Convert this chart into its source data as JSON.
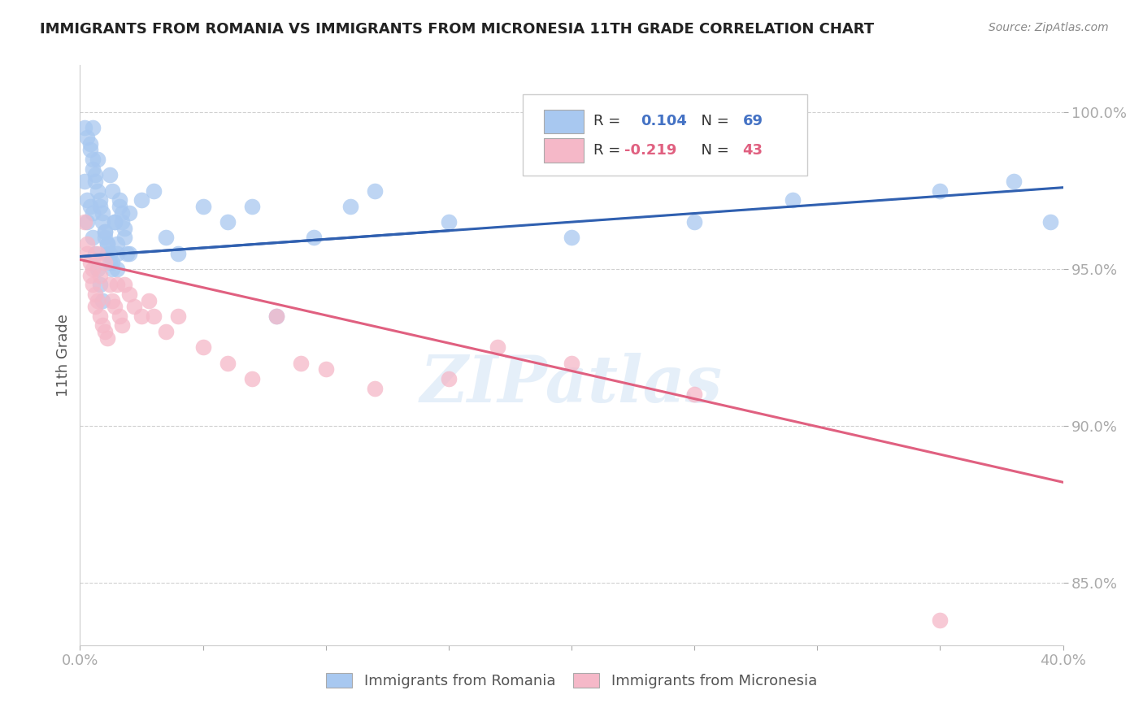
{
  "title": "IMMIGRANTS FROM ROMANIA VS IMMIGRANTS FROM MICRONESIA 11TH GRADE CORRELATION CHART",
  "source": "Source: ZipAtlas.com",
  "ylabel": "11th Grade",
  "xlim": [
    0.0,
    0.4
  ],
  "ylim": [
    83.0,
    101.5
  ],
  "romania_color": "#a8c8f0",
  "micronesia_color": "#f5b8c8",
  "romania_line_color": "#3060b0",
  "micronesia_line_color": "#e06080",
  "dashed_line_color": "#80aae0",
  "r_romania": 0.104,
  "n_romania": 69,
  "r_micronesia": -0.219,
  "n_micronesia": 43,
  "watermark": "ZIPatlas",
  "background_color": "#ffffff",
  "grid_color": "#d0d0d0",
  "title_color": "#222222",
  "axis_label_color": "#4472c4",
  "romania_scatter_x": [
    0.002,
    0.003,
    0.004,
    0.004,
    0.005,
    0.005,
    0.005,
    0.006,
    0.006,
    0.007,
    0.007,
    0.008,
    0.008,
    0.009,
    0.009,
    0.01,
    0.01,
    0.011,
    0.011,
    0.012,
    0.012,
    0.013,
    0.013,
    0.014,
    0.015,
    0.015,
    0.016,
    0.017,
    0.018,
    0.02,
    0.002,
    0.003,
    0.003,
    0.004,
    0.005,
    0.005,
    0.006,
    0.007,
    0.008,
    0.009,
    0.01,
    0.011,
    0.012,
    0.013,
    0.014,
    0.015,
    0.016,
    0.017,
    0.018,
    0.019,
    0.02,
    0.025,
    0.03,
    0.035,
    0.04,
    0.05,
    0.06,
    0.07,
    0.08,
    0.095,
    0.11,
    0.12,
    0.15,
    0.2,
    0.25,
    0.29,
    0.35,
    0.38,
    0.395
  ],
  "romania_scatter_y": [
    99.5,
    99.2,
    99.0,
    98.8,
    98.5,
    98.2,
    99.5,
    98.0,
    97.8,
    97.5,
    98.5,
    97.2,
    97.0,
    96.8,
    96.5,
    96.2,
    96.0,
    95.8,
    95.5,
    95.2,
    98.0,
    97.5,
    95.0,
    96.5,
    95.8,
    95.5,
    97.2,
    96.8,
    96.3,
    95.5,
    97.8,
    97.2,
    96.5,
    97.0,
    96.8,
    96.0,
    95.5,
    95.0,
    94.5,
    94.0,
    96.2,
    95.8,
    95.5,
    95.2,
    96.5,
    95.0,
    97.0,
    96.5,
    96.0,
    95.5,
    96.8,
    97.2,
    97.5,
    96.0,
    95.5,
    97.0,
    96.5,
    97.0,
    93.5,
    96.0,
    97.0,
    97.5,
    96.5,
    96.0,
    96.5,
    97.2,
    97.5,
    97.8,
    96.5
  ],
  "micronesia_scatter_x": [
    0.002,
    0.003,
    0.003,
    0.004,
    0.004,
    0.005,
    0.005,
    0.006,
    0.006,
    0.007,
    0.007,
    0.008,
    0.008,
    0.009,
    0.01,
    0.01,
    0.011,
    0.012,
    0.013,
    0.014,
    0.015,
    0.016,
    0.017,
    0.018,
    0.02,
    0.022,
    0.025,
    0.028,
    0.03,
    0.035,
    0.04,
    0.05,
    0.06,
    0.07,
    0.08,
    0.09,
    0.1,
    0.12,
    0.15,
    0.17,
    0.2,
    0.25,
    0.35
  ],
  "micronesia_scatter_y": [
    96.5,
    95.8,
    95.5,
    95.2,
    94.8,
    95.0,
    94.5,
    94.2,
    93.8,
    95.5,
    94.0,
    93.5,
    94.8,
    93.2,
    93.0,
    95.2,
    92.8,
    94.5,
    94.0,
    93.8,
    94.5,
    93.5,
    93.2,
    94.5,
    94.2,
    93.8,
    93.5,
    94.0,
    93.5,
    93.0,
    93.5,
    92.5,
    92.0,
    91.5,
    93.5,
    92.0,
    91.8,
    91.2,
    91.5,
    92.5,
    92.0,
    91.0,
    83.8
  ]
}
